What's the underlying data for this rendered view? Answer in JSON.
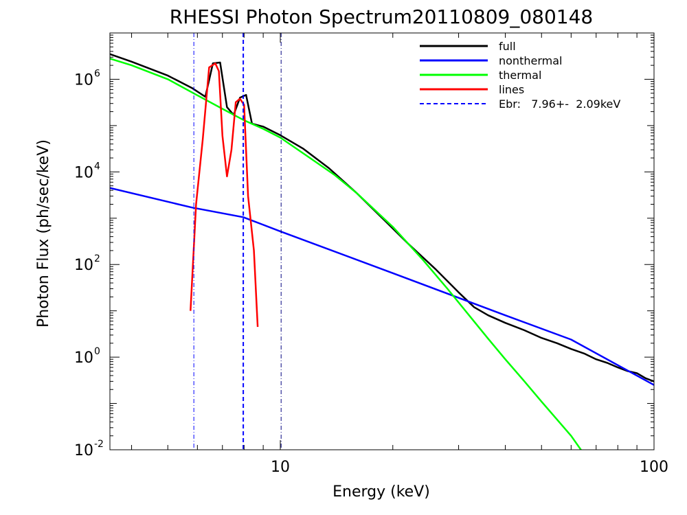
{
  "chart_data": {
    "type": "line",
    "title": "RHESSI Photon Spectrum20110809_080148",
    "xlabel": "Energy (keV)",
    "ylabel": "Photon Flux (ph/sec/keV)",
    "x_scale": "log",
    "y_scale": "log",
    "xlim": [
      3.5,
      100
    ],
    "ylim": [
      0.01,
      10000000
    ],
    "grid": false,
    "legend_position": "top-right",
    "x_ticks": [
      {
        "value": 10,
        "label": "10"
      },
      {
        "value": 100,
        "label": "100"
      }
    ],
    "y_ticks": [
      {
        "value": 0.01,
        "base": "10",
        "exp": "-2"
      },
      {
        "value": 1,
        "base": "10",
        "exp": "0"
      },
      {
        "value": 100,
        "base": "10",
        "exp": "2"
      },
      {
        "value": 10000,
        "base": "10",
        "exp": "4"
      },
      {
        "value": 1000000,
        "base": "10",
        "exp": "6"
      }
    ],
    "series": [
      {
        "name": "full",
        "color": "#000000",
        "style": "solid",
        "x": [
          3.5,
          4.0,
          5.0,
          5.8,
          6.3,
          6.6,
          6.9,
          7.2,
          7.5,
          7.8,
          8.1,
          8.4,
          9.0,
          10.0,
          11.5,
          13.5,
          16.0,
          19.0,
          22.0,
          26.0,
          30.0,
          33.0,
          36.0,
          40.0,
          45.0,
          50.0,
          55.0,
          60.0,
          65.0,
          70.0,
          75.0,
          80.0,
          85.0,
          90.0,
          95.0,
          100.0
        ],
        "y": [
          3500000,
          2400000,
          1200000,
          650000,
          420000,
          2200000,
          2300000,
          250000,
          170000,
          400000,
          460000,
          110000,
          95000,
          62000,
          32000,
          12000,
          3500,
          900,
          280,
          80,
          25,
          12,
          8,
          5.5,
          3.8,
          2.6,
          2.0,
          1.5,
          1.2,
          0.9,
          0.75,
          0.6,
          0.5,
          0.45,
          0.35,
          0.3
        ]
      },
      {
        "name": "nonthermal",
        "color": "#0000ff",
        "style": "solid",
        "x": [
          3.5,
          5.8,
          7.96,
          10.0,
          20.0,
          40.0,
          60.0,
          100.0
        ],
        "y": [
          4500,
          1700,
          1050,
          520,
          65,
          8.0,
          2.4,
          0.25
        ]
      },
      {
        "name": "thermal",
        "color": "#00ff00",
        "style": "solid",
        "x": [
          3.5,
          4.0,
          5.0,
          6.0,
          7.0,
          8.0,
          9.0,
          10.0,
          12.0,
          14.0,
          16.0,
          20.0,
          24.0,
          28.0,
          32.0,
          36.0,
          40.0,
          45.0,
          50.0,
          55.0,
          60.0,
          65.0
        ],
        "y": [
          2800000,
          2000000,
          1000000,
          450000,
          230000,
          130000,
          85000,
          55000,
          20000,
          8500,
          3500,
          650,
          130,
          30,
          8.0,
          2.5,
          0.9,
          0.3,
          0.11,
          0.045,
          0.02,
          0.008
        ]
      },
      {
        "name": "lines",
        "color": "#ff0000",
        "style": "solid",
        "x": [
          5.75,
          5.95,
          6.2,
          6.45,
          6.7,
          6.85,
          7.0,
          7.2,
          7.4,
          7.6,
          7.8,
          8.0,
          8.2,
          8.5,
          8.7
        ],
        "y": [
          10,
          2000,
          50000,
          1800000,
          2200000,
          1500000,
          60000,
          8000,
          30000,
          320000,
          380000,
          280000,
          3000,
          200,
          4.5
        ]
      }
    ],
    "vlines": [
      {
        "name": "Ebr:   7.96+-  2.09keV",
        "x": 7.96,
        "color": "#0000ff",
        "style": "dashed",
        "in_legend": true
      },
      {
        "x": 5.87,
        "color": "#0000ff",
        "style": "dashdot",
        "in_legend": false
      },
      {
        "x": 10.05,
        "color": "#000080",
        "style": "dashdot",
        "in_legend": false
      }
    ]
  }
}
